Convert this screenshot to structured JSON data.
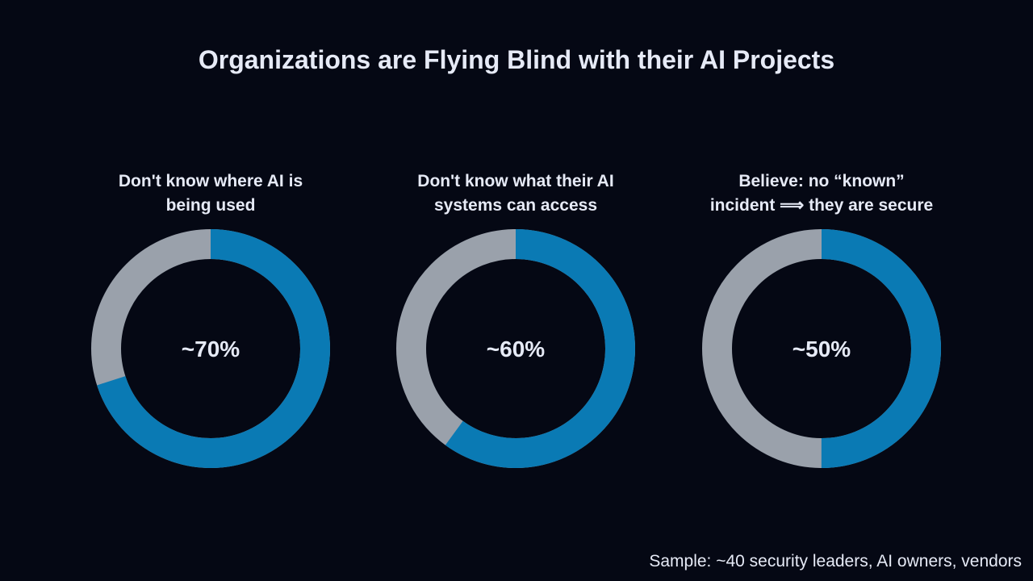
{
  "title": "Organizations are Flying Blind with their AI Projects",
  "footer": "Sample: ~40 security leaders, AI owners, vendors",
  "colors": {
    "background": "#050814",
    "primary": "#0a7ab4",
    "remainder": "#9aa1ab",
    "text": "#e6eaf6"
  },
  "chart_data": [
    {
      "type": "pie",
      "subtitle": [
        "Don't know where AI is",
        "being used"
      ],
      "label": "~70%",
      "value": 70
    },
    {
      "type": "pie",
      "subtitle": [
        "Don't know what their AI",
        "systems can access"
      ],
      "label": "~60%",
      "value": 60
    },
    {
      "type": "pie",
      "subtitle": [
        "Believe: no “known”",
        "incident ⟹ they are secure"
      ],
      "label": "~50%",
      "value": 50
    }
  ]
}
